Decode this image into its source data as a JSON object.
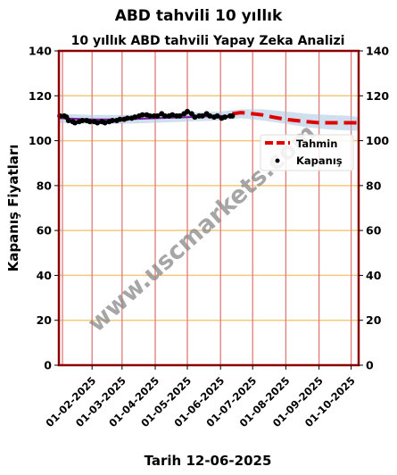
{
  "page_title": "ABD tahvili 10 yıllık",
  "chart_data": {
    "type": "line",
    "title": "10 yıllık ABD tahvili Yapay Zeka Analizi",
    "ylabel": "Kapanış Fiyatları",
    "xlabel": "Tarih 12-06-2025",
    "ylim": [
      0,
      140
    ],
    "yticks": [
      0,
      20,
      40,
      60,
      80,
      100,
      120,
      140
    ],
    "xlim": [
      "2025-01-01",
      "2025-10-08"
    ],
    "xticks": [
      "01-02-2025",
      "01-03-2025",
      "01-04-2025",
      "01-05-2025",
      "01-06-2025",
      "01-07-2025",
      "01-08-2025",
      "01-09-2025",
      "01-10-2025"
    ],
    "grid": true,
    "legend_position": "center-right",
    "watermark": "www.uscmarkets.com",
    "colors": {
      "frame": "#8b0000",
      "hgrid": "#f5c97a",
      "vgrid": "#e07a7a",
      "band": "#a9c4de",
      "trend": "#7a1fa2",
      "forecast": "#e00000",
      "close": "#000000",
      "background": "#ffffff"
    },
    "series": [
      {
        "name": "Kapanış",
        "style": "scatter",
        "x": [
          "2025-01-02",
          "2025-01-06",
          "2025-01-08",
          "2025-01-10",
          "2025-01-14",
          "2025-01-16",
          "2025-01-20",
          "2025-01-23",
          "2025-01-27",
          "2025-01-30",
          "2025-02-03",
          "2025-02-06",
          "2025-02-10",
          "2025-02-13",
          "2025-02-17",
          "2025-02-20",
          "2025-02-24",
          "2025-02-27",
          "2025-03-03",
          "2025-03-06",
          "2025-03-10",
          "2025-03-13",
          "2025-03-17",
          "2025-03-20",
          "2025-03-24",
          "2025-03-27",
          "2025-03-31",
          "2025-04-03",
          "2025-04-07",
          "2025-04-10",
          "2025-04-14",
          "2025-04-17",
          "2025-04-21",
          "2025-04-24",
          "2025-04-28",
          "2025-05-01",
          "2025-05-05",
          "2025-05-08",
          "2025-05-12",
          "2025-05-15",
          "2025-05-19",
          "2025-05-22",
          "2025-05-26",
          "2025-05-29",
          "2025-06-02",
          "2025-06-05",
          "2025-06-10",
          "2025-06-12"
        ],
        "y": [
          111,
          111,
          110.5,
          109,
          108.5,
          108,
          108.5,
          109,
          109,
          108.5,
          108.5,
          108,
          108.5,
          108,
          108.5,
          109,
          109,
          109.5,
          109.5,
          110,
          110,
          110.5,
          111,
          111.5,
          111.5,
          111,
          111,
          111,
          112,
          111,
          111,
          111.5,
          111,
          111,
          112,
          113,
          112,
          110.5,
          111,
          111,
          112,
          111,
          110.5,
          111,
          110,
          110.5,
          111,
          111
        ]
      },
      {
        "name": "Tahmin",
        "style": "dashed-line",
        "x": [
          "2025-06-12",
          "2025-06-20",
          "2025-07-01",
          "2025-07-10",
          "2025-07-20",
          "2025-08-01",
          "2025-08-10",
          "2025-08-20",
          "2025-09-01",
          "2025-09-10",
          "2025-09-20",
          "2025-10-01",
          "2025-10-08"
        ],
        "y": [
          112,
          112.5,
          112,
          111.5,
          110.5,
          109.5,
          109,
          108.5,
          108,
          108,
          108,
          108,
          108
        ]
      },
      {
        "name": "",
        "style": "trend-line",
        "x": [
          "2025-01-02",
          "2025-02-01",
          "2025-03-01",
          "2025-04-01",
          "2025-05-01",
          "2025-06-01",
          "2025-06-12"
        ],
        "y": [
          110,
          109.5,
          109.5,
          110,
          110.5,
          111,
          111
        ]
      }
    ],
    "band": {
      "x": [
        "2025-01-02",
        "2025-02-01",
        "2025-03-01",
        "2025-04-01",
        "2025-05-01",
        "2025-06-01",
        "2025-06-20",
        "2025-07-10",
        "2025-08-01",
        "2025-08-20",
        "2025-09-10",
        "2025-10-01",
        "2025-10-08"
      ],
      "upper": [
        112,
        111.5,
        111.5,
        112,
        112.5,
        113,
        114,
        114,
        113,
        112,
        111.5,
        111,
        110.5
      ],
      "lower": [
        108,
        107.5,
        107.5,
        108,
        108.5,
        109,
        110,
        109,
        107.5,
        106,
        105,
        104.5,
        104.5
      ]
    }
  }
}
